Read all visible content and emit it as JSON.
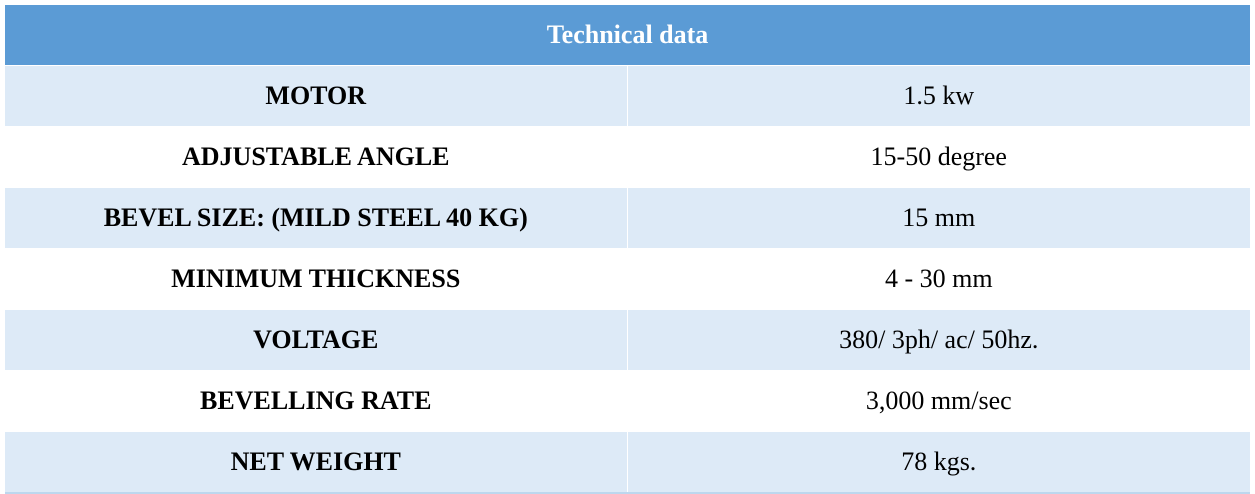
{
  "table": {
    "header": "Technical data",
    "colors": {
      "header_bg": "#5b9bd5",
      "header_text": "#ffffff",
      "row_shaded": "#ddeaf7",
      "row_plain": "#ffffff"
    },
    "rows": [
      {
        "label": "MOTOR",
        "value": "1.5 kw"
      },
      {
        "label": "ADJUSTABLE ANGLE",
        "value": "15-50 degree"
      },
      {
        "label": "BEVEL SIZE: (MILD STEEL 40 KG)",
        "value": "15 mm"
      },
      {
        "label": "MINIMUM THICKNESS",
        "value": "4 - 30 mm"
      },
      {
        "label": "VOLTAGE",
        "value": "380/ 3ph/ ac/ 50hz."
      },
      {
        "label": "BEVELLING RATE",
        "value": "3,000 mm/sec"
      },
      {
        "label": "NET WEIGHT",
        "value": "78 kgs."
      }
    ]
  }
}
